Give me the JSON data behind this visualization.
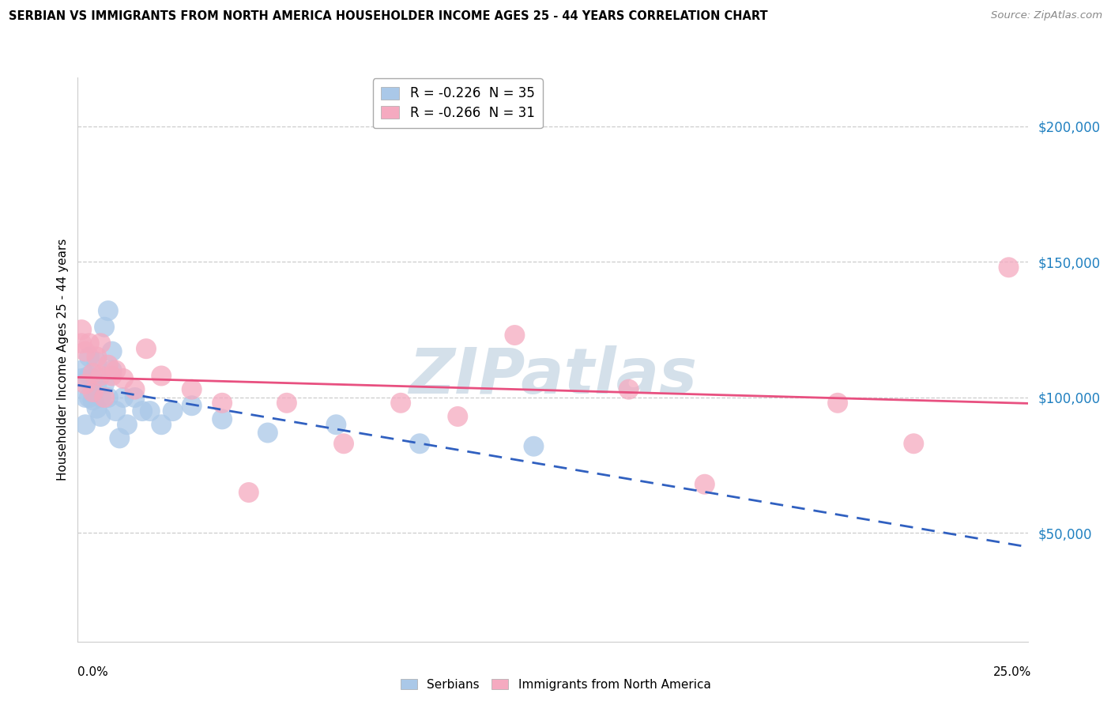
{
  "title": "SERBIAN VS IMMIGRANTS FROM NORTH AMERICA HOUSEHOLDER INCOME AGES 25 - 44 YEARS CORRELATION CHART",
  "source": "Source: ZipAtlas.com",
  "ylabel": "Householder Income Ages 25 - 44 years",
  "yticks": [
    50000,
    100000,
    150000,
    200000
  ],
  "ytick_labels": [
    "$50,000",
    "$100,000",
    "$150,000",
    "$200,000"
  ],
  "xmin": 0.0,
  "xmax": 0.25,
  "ymin": 10000,
  "ymax": 218000,
  "legend_serbian": "R = -0.226  N = 35",
  "legend_immigrant": "R = -0.266  N = 31",
  "serbian_color": "#aac8e8",
  "immigrant_color": "#f5aac0",
  "serbian_line_color": "#3060c0",
  "immigrant_line_color": "#e85080",
  "serbian_line_style": "--",
  "immigrant_line_style": "-",
  "serbian_x": [
    0.001,
    0.001,
    0.002,
    0.002,
    0.003,
    0.003,
    0.003,
    0.004,
    0.004,
    0.005,
    0.005,
    0.005,
    0.006,
    0.006,
    0.007,
    0.007,
    0.008,
    0.008,
    0.009,
    0.009,
    0.01,
    0.011,
    0.012,
    0.013,
    0.015,
    0.017,
    0.019,
    0.022,
    0.025,
    0.03,
    0.038,
    0.05,
    0.068,
    0.09,
    0.12
  ],
  "serbian_y": [
    107000,
    110000,
    90000,
    100000,
    108000,
    100000,
    115000,
    99000,
    107000,
    113000,
    96000,
    104000,
    100000,
    93000,
    126000,
    105000,
    100000,
    132000,
    117000,
    110000,
    95000,
    85000,
    100000,
    90000,
    100000,
    95000,
    95000,
    90000,
    95000,
    97000,
    92000,
    87000,
    90000,
    83000,
    82000
  ],
  "immigrant_x": [
    0.001,
    0.001,
    0.002,
    0.002,
    0.003,
    0.004,
    0.004,
    0.005,
    0.006,
    0.006,
    0.007,
    0.008,
    0.009,
    0.01,
    0.012,
    0.015,
    0.018,
    0.022,
    0.03,
    0.038,
    0.045,
    0.055,
    0.07,
    0.085,
    0.1,
    0.115,
    0.145,
    0.165,
    0.2,
    0.22,
    0.245
  ],
  "immigrant_y": [
    120000,
    125000,
    117000,
    105000,
    120000,
    109000,
    102000,
    115000,
    108000,
    120000,
    100000,
    112000,
    108000,
    110000,
    107000,
    103000,
    118000,
    108000,
    103000,
    98000,
    65000,
    98000,
    83000,
    98000,
    93000,
    123000,
    103000,
    68000,
    98000,
    83000,
    148000
  ]
}
